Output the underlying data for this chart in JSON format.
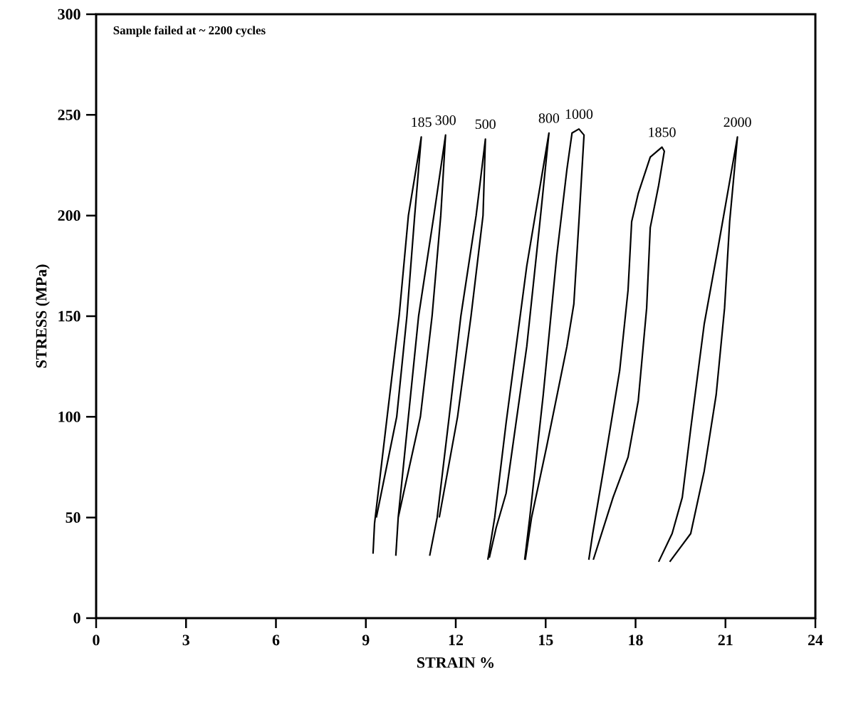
{
  "chart_data": {
    "type": "line",
    "xlabel": "STRAIN  %",
    "ylabel": "STRESS (MPa)",
    "annotations": [
      "Sample failed at ~ 2200 cycles"
    ],
    "xlim": [
      0,
      24
    ],
    "ylim": [
      0,
      300
    ],
    "xticks": [
      0,
      3,
      6,
      9,
      12,
      15,
      18,
      21,
      24
    ],
    "yticks": [
      0,
      50,
      100,
      150,
      200,
      250,
      300
    ],
    "grid": false,
    "legend": false,
    "marker": "none",
    "line_style": "solid",
    "series": [
      {
        "name": "185",
        "color": "#000000",
        "x": [
          9.24,
          9.29,
          9.71,
          10.11,
          10.42,
          10.85,
          10.63,
          10.37,
          10.03,
          9.35
        ],
        "values": [
          32,
          47,
          100,
          150,
          200,
          239,
          200,
          150,
          100,
          50
        ]
      },
      {
        "name": "300",
        "color": "#000000",
        "x": [
          10.0,
          10.08,
          10.42,
          10.76,
          11.27,
          11.66,
          11.5,
          11.21,
          10.82,
          10.08
        ],
        "values": [
          31,
          50,
          100,
          150,
          200,
          240,
          200,
          150,
          100,
          50
        ]
      },
      {
        "name": "500",
        "color": "#000000",
        "x": [
          11.13,
          11.38,
          11.78,
          12.17,
          12.68,
          12.99,
          12.91,
          12.51,
          12.06,
          11.45
        ],
        "values": [
          31,
          50,
          100,
          150,
          200,
          238,
          200,
          150,
          100,
          50
        ]
      },
      {
        "name": "800",
        "color": "#000000",
        "x": [
          13.07,
          13.3,
          13.68,
          14.37,
          15.11,
          14.81,
          14.37,
          13.68,
          13.35,
          13.12
        ],
        "values": [
          29,
          50,
          97,
          175,
          241,
          197,
          135,
          62,
          45,
          30
        ]
      },
      {
        "name": "1000",
        "color": "#000000",
        "x": [
          14.3,
          14.47,
          14.92,
          15.37,
          15.71,
          15.88,
          16.11,
          16.28,
          16.11,
          15.94,
          15.71,
          15.03,
          14.53,
          14.32
        ],
        "values": [
          29,
          50,
          111,
          180,
          223,
          241,
          243,
          240,
          197,
          156,
          135,
          85,
          50,
          29
        ]
      },
      {
        "name": "1850",
        "color": "#000000",
        "x": [
          16.44,
          16.57,
          16.91,
          17.47,
          17.75,
          17.87,
          18.09,
          18.49,
          18.88,
          18.96,
          18.77,
          18.49,
          18.37,
          18.09,
          17.75,
          17.25,
          16.59
        ],
        "values": [
          29,
          42,
          72,
          123,
          163,
          197,
          211,
          229,
          234,
          232,
          215,
          194,
          154,
          108,
          80,
          60,
          29
        ]
      },
      {
        "name": "2000",
        "color": "#000000",
        "x": [
          18.77,
          19.22,
          19.56,
          19.84,
          20.29,
          20.74,
          21.4,
          21.14,
          20.97,
          20.69,
          20.29,
          19.84,
          19.14
        ],
        "values": [
          28,
          42,
          60,
          94,
          146,
          183,
          239,
          197,
          154,
          111,
          73,
          42,
          28
        ]
      }
    ]
  }
}
